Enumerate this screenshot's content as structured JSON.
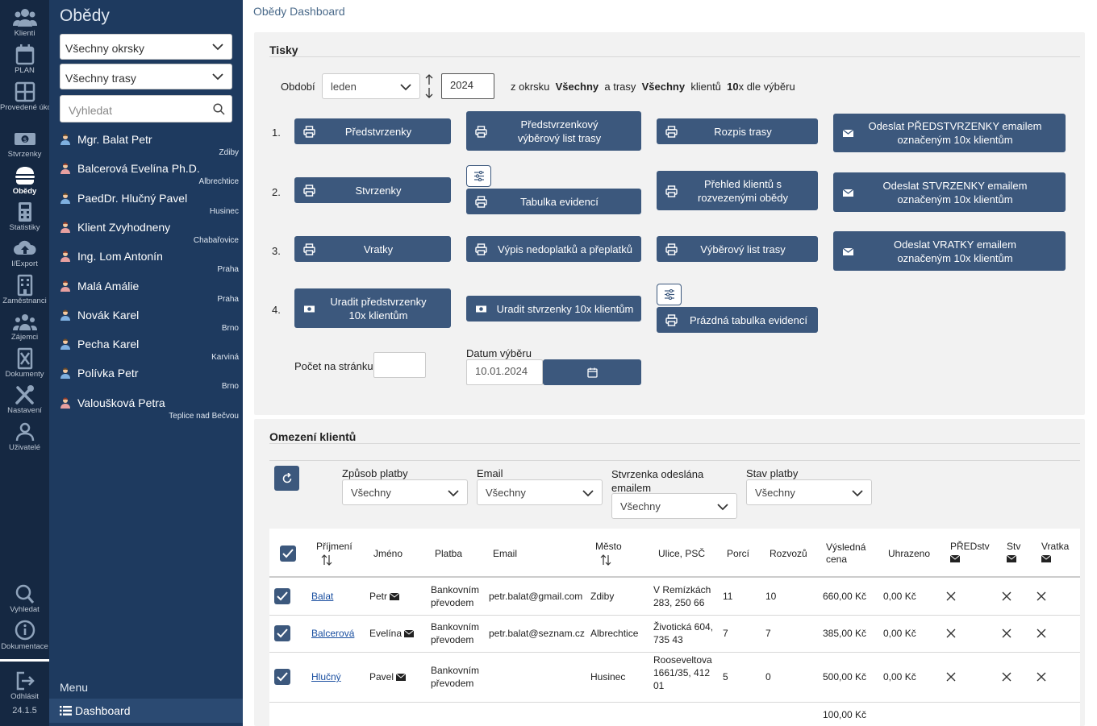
{
  "rail": {
    "items": [
      {
        "label": "Klienti",
        "icon": "users-icon"
      },
      {
        "label": "PLAN",
        "icon": "calendar-icon"
      },
      {
        "label": "Provedené úkony",
        "icon": "grid-icon"
      },
      {
        "label": "Stvrzenky",
        "icon": "money-icon"
      },
      {
        "label": "Obědy",
        "icon": "burger-icon"
      },
      {
        "label": "Statistiky",
        "icon": "calculator-icon"
      },
      {
        "label": "I/Export",
        "icon": "cloud-upload-icon"
      },
      {
        "label": "Zaměstnanci",
        "icon": "building-icon"
      },
      {
        "label": "Zájemci",
        "icon": "group-icon"
      },
      {
        "label": "Dokumenty",
        "icon": "document-x-icon"
      },
      {
        "label": "Nastavení",
        "icon": "tools-icon"
      },
      {
        "label": "Uživatelé",
        "icon": "user-outline-icon"
      }
    ],
    "bottom": [
      {
        "label": "Vyhledat",
        "icon": "search-icon"
      },
      {
        "label": "Dokumentace",
        "icon": "info-icon"
      },
      {
        "label": "Odhlásit",
        "icon": "logout-icon"
      }
    ],
    "version": "24.1.5"
  },
  "sidebar": {
    "title": "Obědy",
    "district_select": "Všechny okrsky",
    "route_select": "Všechny trasy",
    "search_placeholder": "Vyhledat",
    "clients": [
      {
        "name": "Mgr. Balat Petr",
        "city": "Zdiby",
        "gender": "m"
      },
      {
        "name": "Balcerová Evelína Ph.D.",
        "city": "Albrechtice",
        "gender": "f"
      },
      {
        "name": "PaedDr. Hlučný Pavel",
        "city": "Husinec",
        "gender": "m"
      },
      {
        "name": "Klient Zvyhodneny",
        "city": "Chabařovice",
        "gender": "f"
      },
      {
        "name": "Ing. Lom Antonín",
        "city": "Praha",
        "gender": "f"
      },
      {
        "name": "Malá Amálie",
        "city": "Praha",
        "gender": "f"
      },
      {
        "name": "Novák Karel",
        "city": "Brno",
        "gender": "m"
      },
      {
        "name": "Pecha Karel",
        "city": "Karviná",
        "gender": "m"
      },
      {
        "name": "Polívka Petr",
        "city": "Brno",
        "gender": "m"
      },
      {
        "name": "Valoušková Petra",
        "city": "Teplice nad Bečvou",
        "gender": "f"
      }
    ],
    "menu_label": "Menu",
    "dashboard_label": "Dashboard"
  },
  "page": {
    "title": "Obědy Dashboard"
  },
  "tisky": {
    "heading": "Tisky",
    "period_label": "Období",
    "month": "leden",
    "year": "2024",
    "summary": {
      "t1": "z okrsku",
      "v1": "Všechny",
      "t2": "a trasy",
      "v2": "Všechny",
      "t3": "klientů",
      "v3": "10",
      "t4": "x dle výběru"
    },
    "rows": [
      {
        "n": "1.",
        "b1": "Předstvrzenky",
        "b2": "Předstvrzenkový výběrový list trasy",
        "b3": "Rozpis trasy",
        "b4": "Odeslat PŘEDSTVRZENKY emailem označeným 10x klientům"
      },
      {
        "n": "2.",
        "b1": "Stvrzenky",
        "b2": "Tabulka evidencí",
        "b3": "Přehled klientů s rozvezenými obědy",
        "b4": "Odeslat STVRZENKY emailem označeným 10x klientům"
      },
      {
        "n": "3.",
        "b1": "Vratky",
        "b2": "Výpis nedoplatků a přeplatků",
        "b3": "Výběrový list trasy",
        "b4": "Odeslat VRATKY emailem označeným 10x klientům"
      },
      {
        "n": "4.",
        "b1": "Uradit předstvrzenky 10x klientům",
        "b2": "Uradit stvrzenky 10x klientům",
        "b3": "Prázdná tabulka evidencí"
      }
    ],
    "per_page_label": "Počet na stránku",
    "per_page_value": "",
    "date_label": "Datum výběru",
    "date_value": "10.01.2024"
  },
  "omezeni": {
    "heading": "Omezení klientů",
    "filters": [
      {
        "label": "Způsob platby",
        "value": "Všechny"
      },
      {
        "label": "Email",
        "value": "Všechny"
      },
      {
        "label": "Stvrzenka odeslána emailem",
        "value": "Všechny"
      },
      {
        "label": "Stav platby",
        "value": "Všechny"
      }
    ],
    "columns": {
      "prijmeni": "Příjmení",
      "jmeno": "Jméno",
      "platba": "Platba",
      "email": "Email",
      "mesto": "Město",
      "ulice": "Ulice, PSČ",
      "porci": "Porcí",
      "rozvozu": "Rozvozů",
      "cena": "Výsledná cena",
      "uhrazeno": "Uhrazeno",
      "predstv": "PŘEDstv",
      "stv": "Stv",
      "vratka": "Vratka"
    },
    "rows": [
      {
        "prijmeni": "Balat",
        "jmeno": "Petr",
        "platba": "Bankovním převodem",
        "email": "petr.balat@gmail.com",
        "mesto": "Zdiby",
        "ulice": "V Remízkách 283, 250 66",
        "porci": "11",
        "rozvozu": "10",
        "cena": "660,00 Kč",
        "uhrazeno": "0,00 Kč"
      },
      {
        "prijmeni": "Balcerová",
        "jmeno": "Evelína",
        "platba": "Bankovním převodem",
        "email": "petr.balat@seznam.cz",
        "mesto": "Albrechtice",
        "ulice": "Životická 604, 735 43",
        "porci": "7",
        "rozvozu": "7",
        "cena": "385,00 Kč",
        "uhrazeno": "0,00 Kč"
      },
      {
        "prijmeni": "Hlučný",
        "jmeno": "Pavel",
        "platba": "Bankovním převodem",
        "email": "",
        "mesto": "Husinec",
        "ulice": "Rooseveltova 1661/35, 412 01",
        "porci": "5",
        "rozvozu": "0",
        "cena": "500,00 Kč",
        "uhrazeno": "0,00 Kč"
      }
    ],
    "partial_row_cena": "100,00 Kč"
  }
}
